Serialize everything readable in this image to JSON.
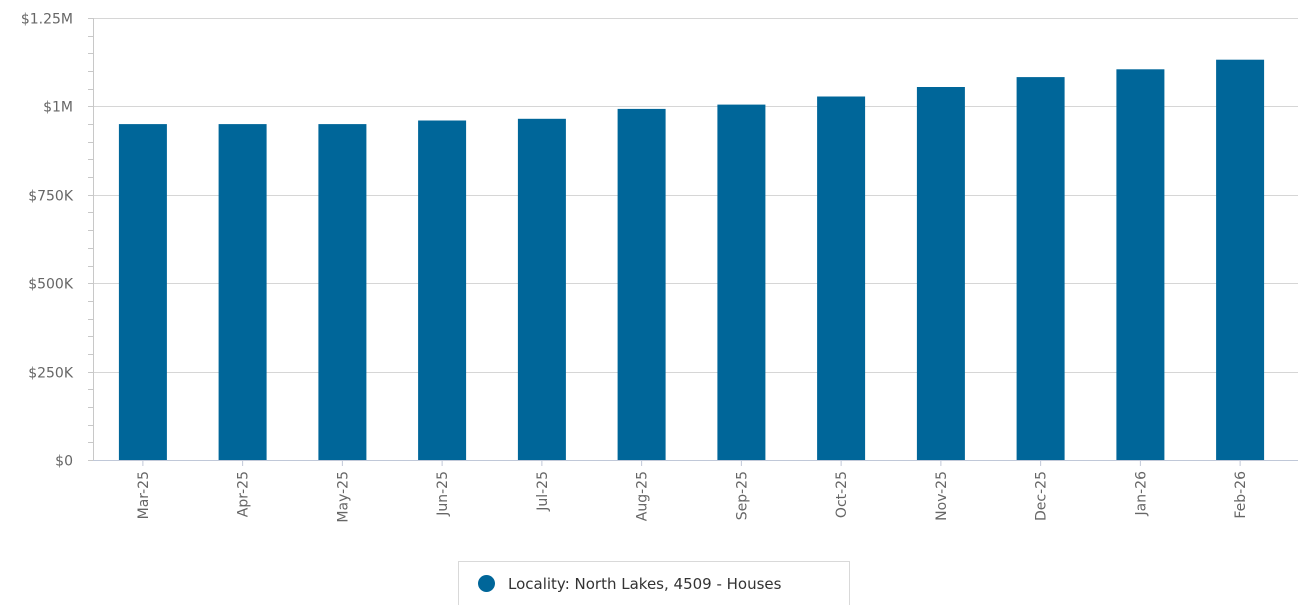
{
  "chart_data": {
    "type": "bar",
    "title": "",
    "xlabel": "",
    "ylabel": "",
    "categories": [
      "Mar-25",
      "Apr-25",
      "May-25",
      "Jun-25",
      "Jul-25",
      "Aug-25",
      "Sep-25",
      "Oct-25",
      "Nov-25",
      "Dec-25",
      "Jan-26",
      "Feb-26"
    ],
    "series": [
      {
        "name": "Locality: North Lakes, 4509 - Houses",
        "color": "#006699",
        "values": [
          950000,
          950000,
          950000,
          960000,
          965000,
          993000,
          1005000,
          1028000,
          1055000,
          1083000,
          1105000,
          1132000
        ]
      }
    ],
    "ylim": [
      0,
      1250000
    ],
    "y_ticks": [
      {
        "value": 0,
        "label": "$0"
      },
      {
        "value": 250000,
        "label": "$250K"
      },
      {
        "value": 500000,
        "label": "$500K"
      },
      {
        "value": 750000,
        "label": "$750K"
      },
      {
        "value": 1000000,
        "label": "$1M"
      },
      {
        "value": 1250000,
        "label": "$1.25M"
      }
    ],
    "grid": true,
    "legend_position": "bottom-center"
  }
}
